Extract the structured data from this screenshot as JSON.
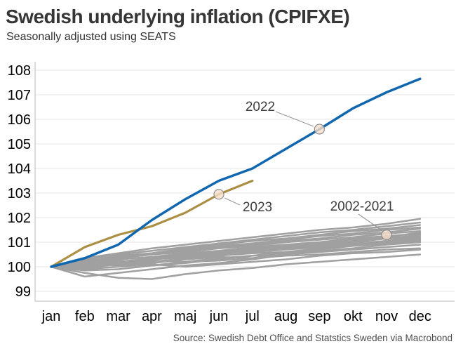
{
  "header": {
    "title": "Swedish underlying inflation (CPIFXE)",
    "subtitle": "Seasonally adjusted using SEATS"
  },
  "footer": {
    "source": "Source: Swedish Debt Office and Statstics Sweden via Macrobond"
  },
  "chart_data": {
    "type": "line",
    "title": "Swedish underlying inflation (CPIFXE)",
    "subtitle": "Seasonally adjusted using SEATS",
    "x_tick_labels": [
      "jan",
      "feb",
      "mar",
      "apr",
      "maj",
      "jun",
      "jul",
      "aug",
      "sep",
      "okt",
      "nov",
      "dec"
    ],
    "y_ticks": [
      99,
      100,
      101,
      102,
      103,
      104,
      105,
      106,
      107,
      108
    ],
    "ylim": [
      98.6,
      108.4
    ],
    "grid": "horizontal",
    "legend": "none",
    "style": {
      "grid_color": "#e4e4e4",
      "axis_color": "#c6c6c6",
      "tick_label_color": "#000000",
      "annotation_text_color": "#3d3d3d",
      "callout_line_color": "#999999",
      "marker_fill": "#f6dfca",
      "marker_stroke": "#8d8d8d"
    },
    "series": [
      {
        "name": "2022",
        "color": "#1167af",
        "width": 3.5,
        "values": [
          100,
          100.35,
          100.9,
          101.9,
          102.75,
          103.5,
          104.0,
          104.8,
          105.6,
          106.45,
          107.1,
          107.65
        ]
      },
      {
        "name": "2023",
        "color": "#ab8f44",
        "width": 3.2,
        "values": [
          100,
          100.8,
          101.3,
          101.65,
          102.2,
          102.95,
          103.5
        ]
      },
      {
        "name": "2002",
        "color": "#a0a0a0",
        "width": 2.6,
        "values": [
          100,
          99.75,
          99.55,
          99.5,
          99.7,
          99.85,
          99.95,
          100.1,
          100.2,
          100.3,
          100.4,
          100.5
        ]
      },
      {
        "name": "2003",
        "color": "#a0a0a0",
        "width": 2.6,
        "values": [
          100,
          99.6,
          99.75,
          99.9,
          100.05,
          100.15,
          100.3,
          100.5,
          100.7,
          100.9,
          101.05,
          101.25
        ]
      },
      {
        "name": "2004",
        "color": "#a0a0a0",
        "width": 2.6,
        "values": [
          100,
          99.9,
          100.0,
          100.1,
          100.0,
          100.1,
          100.2,
          100.3,
          100.45,
          100.55,
          100.6,
          100.7
        ]
      },
      {
        "name": "2005",
        "color": "#a0a0a0",
        "width": 2.6,
        "values": [
          100,
          100.0,
          100.1,
          100.05,
          100.2,
          100.25,
          100.35,
          100.45,
          100.5,
          100.6,
          100.7,
          100.75
        ]
      },
      {
        "name": "2006",
        "color": "#a0a0a0",
        "width": 2.6,
        "values": [
          100,
          100.05,
          100.15,
          100.25,
          100.2,
          100.35,
          100.45,
          100.5,
          100.6,
          100.7,
          100.8,
          100.9
        ]
      },
      {
        "name": "2007",
        "color": "#a0a0a0",
        "width": 2.6,
        "values": [
          100,
          100.1,
          100.05,
          100.15,
          100.3,
          100.4,
          100.35,
          100.55,
          100.65,
          100.75,
          100.9,
          101.0
        ]
      },
      {
        "name": "2008",
        "color": "#a0a0a0",
        "width": 2.6,
        "values": [
          100,
          99.95,
          100.1,
          100.2,
          100.35,
          100.45,
          100.55,
          100.6,
          100.7,
          100.85,
          100.95,
          101.05
        ]
      },
      {
        "name": "2009",
        "color": "#a0a0a0",
        "width": 2.6,
        "values": [
          100,
          100.1,
          100.2,
          100.3,
          100.4,
          100.5,
          100.6,
          100.7,
          100.8,
          100.9,
          101.0,
          101.1
        ]
      },
      {
        "name": "2010",
        "color": "#a0a0a0",
        "width": 2.6,
        "values": [
          100,
          100.15,
          100.25,
          100.15,
          100.35,
          100.5,
          100.6,
          100.75,
          100.85,
          100.95,
          101.05,
          101.15
        ]
      },
      {
        "name": "2011",
        "color": "#a0a0a0",
        "width": 2.6,
        "values": [
          100,
          100.05,
          100.2,
          100.35,
          100.45,
          100.6,
          100.7,
          100.8,
          100.9,
          101.0,
          101.15,
          101.2
        ]
      },
      {
        "name": "2012",
        "color": "#a0a0a0",
        "width": 2.6,
        "values": [
          100,
          100.2,
          100.3,
          100.4,
          100.5,
          100.6,
          100.75,
          100.85,
          100.95,
          101.05,
          101.15,
          101.3
        ]
      },
      {
        "name": "2013",
        "color": "#a0a0a0",
        "width": 2.6,
        "values": [
          100,
          100.1,
          100.3,
          100.4,
          100.55,
          100.65,
          100.8,
          100.9,
          101.0,
          101.15,
          101.25,
          101.35
        ]
      },
      {
        "name": "2014",
        "color": "#a0a0a0",
        "width": 2.6,
        "values": [
          100,
          100.25,
          100.35,
          100.5,
          100.6,
          100.75,
          100.85,
          101.0,
          101.1,
          101.2,
          101.35,
          101.45
        ]
      },
      {
        "name": "2015",
        "color": "#a0a0a0",
        "width": 2.6,
        "values": [
          100,
          100.15,
          100.35,
          100.5,
          100.65,
          100.8,
          100.9,
          101.05,
          101.15,
          101.3,
          101.4,
          101.55
        ]
      },
      {
        "name": "2016",
        "color": "#a0a0a0",
        "width": 2.6,
        "values": [
          100,
          100.3,
          100.45,
          100.55,
          100.7,
          100.85,
          100.95,
          101.1,
          101.25,
          101.35,
          101.5,
          101.6
        ]
      },
      {
        "name": "2017",
        "color": "#a0a0a0",
        "width": 2.6,
        "values": [
          100,
          100.2,
          100.4,
          100.55,
          100.75,
          100.9,
          101.05,
          101.15,
          101.3,
          101.45,
          101.55,
          101.7
        ]
      },
      {
        "name": "2018",
        "color": "#a0a0a0",
        "width": 2.6,
        "values": [
          100,
          100.3,
          100.5,
          100.65,
          100.8,
          100.95,
          101.1,
          101.25,
          101.4,
          101.5,
          101.65,
          101.8
        ]
      },
      {
        "name": "2019",
        "color": "#a0a0a0",
        "width": 2.6,
        "values": [
          100,
          100.35,
          100.55,
          100.75,
          100.9,
          101.05,
          101.2,
          101.35,
          101.5,
          101.6,
          101.75,
          101.95
        ]
      },
      {
        "name": "2020",
        "color": "#a0a0a0",
        "width": 2.6,
        "values": [
          100,
          99.85,
          99.9,
          100.05,
          100.15,
          100.3,
          100.45,
          100.6,
          100.75,
          100.85,
          101.0,
          101.1
        ]
      },
      {
        "name": "2021",
        "color": "#a0a0a0",
        "width": 2.6,
        "values": [
          100,
          100.1,
          100.15,
          100.3,
          100.4,
          100.55,
          100.65,
          100.85,
          100.95,
          101.1,
          101.2,
          101.4
        ]
      }
    ],
    "annotations": [
      {
        "label": "2022",
        "month": "sep",
        "value": 105.6
      },
      {
        "label": "2023",
        "month": "jun",
        "value": 102.95
      },
      {
        "label": "2002-2021",
        "month": "nov",
        "value": 101.3
      }
    ]
  }
}
